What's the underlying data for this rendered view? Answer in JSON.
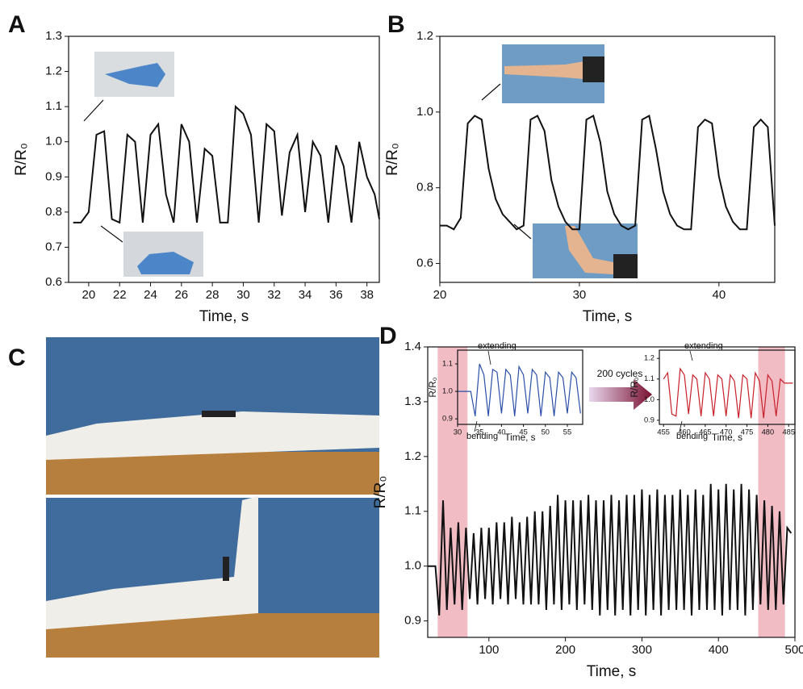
{
  "chart_data": [
    {
      "type": "line",
      "panel": "A",
      "xlabel": "Time, s",
      "ylabel": "R/R₀",
      "xlim": [
        18.7,
        38.8
      ],
      "ylim": [
        0.6,
        1.3
      ],
      "xticks": [
        20,
        22,
        24,
        26,
        28,
        30,
        32,
        34,
        36,
        38
      ],
      "yticks": [
        0.6,
        0.7,
        0.8,
        0.9,
        {
          "value": 1,
          "label": "1.0"
        },
        1.1,
        1.2,
        1.3
      ],
      "x": [
        19,
        19.5,
        20,
        20.5,
        21,
        21.5,
        22,
        22.5,
        23,
        23.5,
        24,
        24.5,
        25,
        25.5,
        26,
        26.5,
        27,
        27.5,
        28,
        28.5,
        29,
        29.5,
        30,
        30.5,
        31,
        31.5,
        32,
        32.5,
        33,
        33.5,
        34,
        34.5,
        35,
        35.5,
        36,
        36.5,
        37,
        37.5,
        38,
        38.5,
        38.8
      ],
      "series": [
        {
          "color": "#111111",
          "values": [
            0.77,
            0.77,
            0.8,
            1.02,
            1.03,
            0.78,
            0.77,
            1.02,
            1.0,
            0.77,
            1.02,
            1.05,
            0.85,
            0.77,
            1.05,
            1.0,
            0.77,
            0.98,
            0.96,
            0.77,
            0.77,
            1.1,
            1.08,
            1.02,
            0.77,
            1.05,
            1.03,
            0.79,
            0.97,
            1.02,
            0.8,
            1.0,
            0.96,
            0.77,
            0.99,
            0.93,
            0.77,
            1.0,
            0.9,
            0.85,
            0.78
          ]
        }
      ]
    },
    {
      "type": "line",
      "panel": "B",
      "xlabel": "Time, s",
      "ylabel": "R/R₀",
      "xlim": [
        20,
        44
      ],
      "ylim": [
        0.55,
        1.2
      ],
      "xticks": [
        20,
        30,
        40
      ],
      "yticks": [
        0.6,
        0.8,
        {
          "value": 1,
          "label": "1.0"
        },
        1.2
      ],
      "x": [
        20,
        20.5,
        21,
        21.5,
        22,
        22.5,
        23,
        23.5,
        24,
        24.5,
        25,
        25.5,
        26,
        26.5,
        27,
        27.5,
        28,
        28.5,
        29,
        29.5,
        30,
        30.5,
        31,
        31.5,
        32,
        32.5,
        33,
        33.5,
        34,
        34.5,
        35,
        35.5,
        36,
        36.5,
        37,
        37.5,
        38,
        38.5,
        39,
        39.5,
        40,
        40.5,
        41,
        41.5,
        42,
        42.5,
        43,
        43.5,
        44
      ],
      "series": [
        {
          "color": "#111111",
          "values": [
            0.7,
            0.7,
            0.69,
            0.72,
            0.97,
            0.99,
            0.98,
            0.85,
            0.77,
            0.73,
            0.71,
            0.69,
            0.7,
            0.98,
            0.99,
            0.95,
            0.82,
            0.75,
            0.71,
            0.69,
            0.69,
            0.98,
            0.99,
            0.92,
            0.79,
            0.73,
            0.7,
            0.69,
            0.7,
            0.98,
            0.99,
            0.9,
            0.79,
            0.73,
            0.7,
            0.69,
            0.69,
            0.96,
            0.98,
            0.97,
            0.83,
            0.75,
            0.71,
            0.69,
            0.69,
            0.96,
            0.98,
            0.96,
            0.7
          ]
        }
      ]
    },
    {
      "type": "line",
      "panel": "D",
      "xlabel": "Time, s",
      "ylabel": "R/R₀",
      "annotation": "200 cycles",
      "xlim": [
        20,
        500
      ],
      "ylim": [
        0.87,
        1.4
      ],
      "xticks": [
        100,
        200,
        300,
        400,
        500
      ],
      "yticks": [
        0.9,
        {
          "value": 1,
          "label": "1.0"
        },
        1.1,
        1.2,
        1.3,
        1.4
      ],
      "highlights": [
        [
          33,
          72
        ],
        [
          452,
          487
        ]
      ],
      "highlight_color": "#e8909c",
      "x": [
        20,
        25,
        30,
        35,
        40,
        45,
        50,
        55,
        60,
        65,
        70,
        75,
        80,
        85,
        90,
        95,
        100,
        105,
        110,
        115,
        120,
        125,
        130,
        135,
        140,
        145,
        150,
        155,
        160,
        165,
        170,
        175,
        180,
        185,
        190,
        195,
        200,
        205,
        210,
        215,
        220,
        225,
        230,
        235,
        240,
        245,
        250,
        255,
        260,
        265,
        270,
        275,
        280,
        285,
        290,
        295,
        300,
        305,
        310,
        315,
        320,
        325,
        330,
        335,
        340,
        345,
        350,
        355,
        360,
        365,
        370,
        375,
        380,
        385,
        390,
        395,
        400,
        405,
        410,
        415,
        420,
        425,
        430,
        435,
        440,
        445,
        450,
        455,
        460,
        465,
        470,
        475,
        480,
        485,
        490,
        495
      ],
      "series": [
        {
          "color": "#111111",
          "values": [
            1.0,
            1.0,
            1.0,
            0.91,
            1.12,
            0.92,
            1.07,
            0.93,
            1.08,
            0.92,
            1.07,
            0.94,
            1.06,
            0.93,
            1.07,
            0.94,
            1.07,
            0.93,
            1.08,
            0.94,
            1.08,
            0.93,
            1.09,
            0.94,
            1.08,
            0.93,
            1.09,
            0.93,
            1.1,
            0.93,
            1.1,
            0.92,
            1.11,
            0.93,
            1.13,
            0.92,
            1.12,
            0.93,
            1.12,
            0.92,
            1.12,
            0.93,
            1.13,
            0.92,
            1.12,
            0.91,
            1.12,
            0.92,
            1.13,
            0.91,
            1.12,
            0.92,
            1.13,
            0.91,
            1.13,
            0.92,
            1.14,
            0.91,
            1.13,
            0.92,
            1.14,
            0.91,
            1.13,
            0.92,
            1.13,
            0.92,
            1.14,
            0.92,
            1.13,
            0.91,
            1.14,
            0.92,
            1.13,
            0.92,
            1.15,
            0.92,
            1.14,
            0.91,
            1.15,
            0.92,
            1.14,
            0.92,
            1.15,
            0.91,
            1.14,
            0.92,
            1.13,
            0.93,
            1.12,
            0.92,
            1.11,
            0.92,
            1.1,
            0.93,
            1.07,
            1.06
          ]
        }
      ]
    },
    {
      "type": "line",
      "xlabel": "Time, s",
      "ylabel": "R/R₀",
      "annotations": [
        "extending",
        "bending"
      ],
      "xlim": [
        30,
        58.5
      ],
      "ylim": [
        0.88,
        1.15
      ],
      "xticks": [
        30,
        35,
        40,
        45,
        50,
        55
      ],
      "yticks": [
        0.9,
        {
          "value": 1,
          "label": "1.0"
        },
        1.1
      ],
      "x": [
        30,
        31,
        32,
        33,
        34,
        35,
        36,
        37,
        38,
        39,
        40,
        41,
        42,
        43,
        44,
        45,
        46,
        47,
        48,
        49,
        50,
        51,
        52,
        53,
        54,
        55,
        56,
        57,
        58
      ],
      "series": [
        {
          "color": "#2b4fa8",
          "values": [
            1.0,
            1.0,
            1.0,
            1.0,
            0.91,
            1.1,
            1.06,
            0.91,
            1.08,
            1.07,
            0.92,
            1.08,
            1.06,
            0.91,
            1.09,
            1.06,
            0.92,
            1.08,
            1.06,
            0.91,
            1.07,
            1.05,
            0.91,
            1.07,
            1.05,
            0.92,
            1.07,
            1.05,
            0.92
          ]
        }
      ]
    },
    {
      "type": "line",
      "xlabel": "Time, s",
      "ylabel": "R/R₀",
      "annotations": [
        "extending",
        "bending"
      ],
      "xlim": [
        454,
        486.5
      ],
      "ylim": [
        0.88,
        1.24
      ],
      "xticks": [
        455,
        460,
        465,
        470,
        475,
        480,
        485
      ],
      "yticks": [
        0.9,
        {
          "value": 1,
          "label": "1.0"
        },
        1.1,
        1.2
      ],
      "x": [
        455,
        456,
        457,
        458,
        459,
        460,
        461,
        462,
        463,
        464,
        465,
        466,
        467,
        468,
        469,
        470,
        471,
        472,
        473,
        474,
        475,
        476,
        477,
        478,
        479,
        480,
        481,
        482,
        483,
        484,
        485,
        486
      ],
      "series": [
        {
          "color": "#c8202a",
          "values": [
            1.1,
            1.13,
            0.93,
            0.92,
            1.15,
            1.12,
            0.93,
            1.12,
            1.1,
            0.92,
            1.13,
            1.1,
            0.92,
            1.12,
            1.1,
            0.92,
            1.12,
            1.09,
            0.91,
            1.12,
            1.1,
            0.91,
            1.13,
            1.09,
            0.91,
            1.12,
            1.09,
            0.92,
            1.1,
            1.08,
            1.08,
            1.08
          ]
        }
      ]
    }
  ],
  "panel_c": {
    "label": "C"
  }
}
